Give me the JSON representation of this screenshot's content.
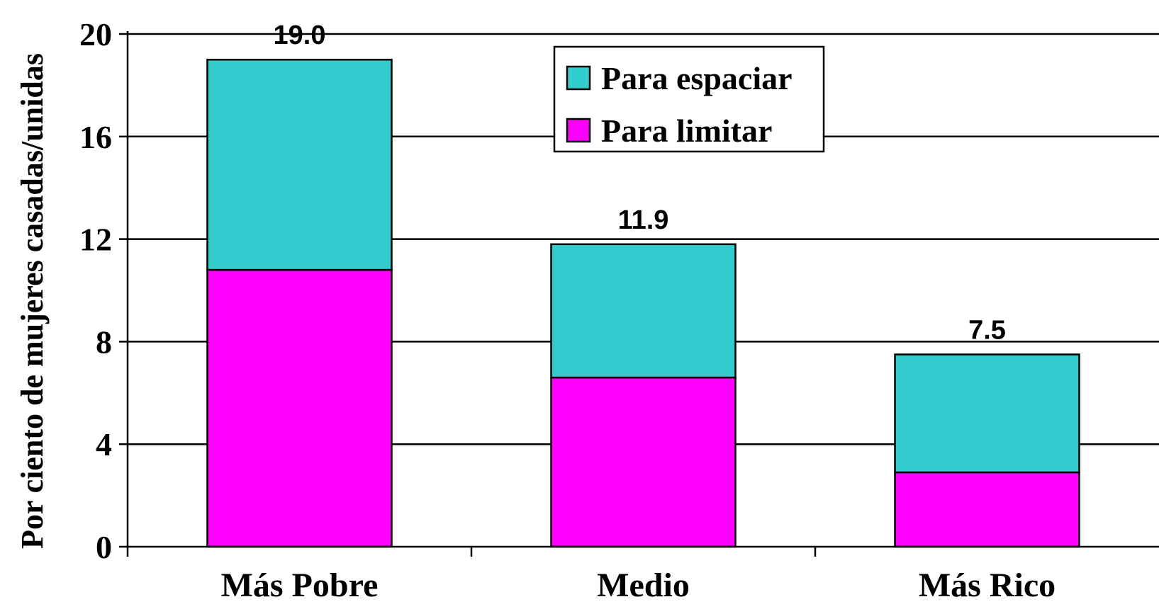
{
  "chart_data": {
    "type": "bar",
    "stacked": true,
    "categories": [
      "Más Pobre",
      "Medio",
      "Más Rico"
    ],
    "series": [
      {
        "name": "Para limitar",
        "values": [
          10.8,
          6.6,
          2.9
        ],
        "color": "#FF00FF"
      },
      {
        "name": "Para espaciar",
        "values": [
          8.2,
          5.2,
          4.6
        ],
        "color": "#33CCCC"
      }
    ],
    "totals": [
      "19.0",
      "11.9",
      "7.5"
    ],
    "title": "",
    "xlabel": "",
    "ylabel": "Por ciento de mujeres casadas/unidas",
    "ylim": [
      0,
      20
    ],
    "yticks": [
      0,
      4,
      8,
      12,
      16,
      20
    ],
    "grid": true,
    "legend_position": "top-center",
    "legend_order": [
      "Para espaciar",
      "Para limitar"
    ]
  }
}
